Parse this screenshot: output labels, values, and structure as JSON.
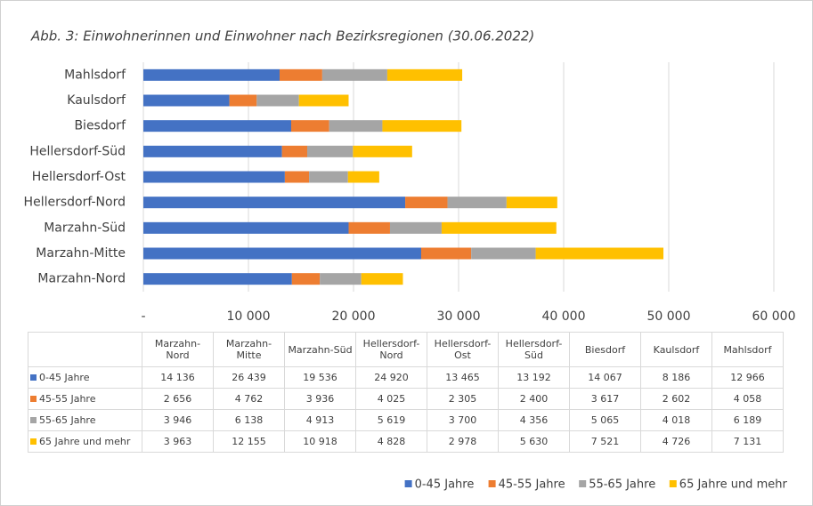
{
  "chart_data": {
    "type": "bar",
    "title": "Abb. 3: Einwohnerinnen und Einwohner nach Bezirksregionen (30.06.2022)",
    "orientation": "horizontal",
    "stacked": true,
    "categories": [
      "Marzahn-Nord",
      "Marzahn-Mitte",
      "Marzahn-Süd",
      "Hellersdorf-Nord",
      "Hellersdorf-Ost",
      "Hellersdorf-Süd",
      "Biesdorf",
      "Kaulsdorf",
      "Mahlsdorf"
    ],
    "series": [
      {
        "name": "0-45 Jahre",
        "color": "#4472c4",
        "values": [
          14136,
          26439,
          19536,
          24920,
          13465,
          13192,
          14067,
          8186,
          12966
        ],
        "value_labels": [
          "14 136",
          "26 439",
          "19 536",
          "24 920",
          "13 465",
          "13 192",
          "14 067",
          "8 186",
          "12 966"
        ]
      },
      {
        "name": "45-55 Jahre",
        "color": "#ed7d31",
        "values": [
          2656,
          4762,
          3936,
          4025,
          2305,
          2400,
          3617,
          2602,
          4058
        ],
        "value_labels": [
          "2 656",
          "4 762",
          "3 936",
          "4 025",
          "2 305",
          "2 400",
          "3 617",
          "2 602",
          "4 058"
        ]
      },
      {
        "name": "55-65 Jahre",
        "color": "#a5a5a5",
        "values": [
          3946,
          6138,
          4913,
          5619,
          3700,
          4356,
          5065,
          4018,
          6189
        ],
        "value_labels": [
          "3 946",
          "6 138",
          "4 913",
          "5 619",
          "3 700",
          "4 356",
          "5 065",
          "4 018",
          "6 189"
        ]
      },
      {
        "name": "65 Jahre und mehr",
        "color": "#ffc000",
        "values": [
          3963,
          12155,
          10918,
          4828,
          2978,
          5630,
          7521,
          4726,
          7131
        ],
        "value_labels": [
          "3 963",
          "12 155",
          "10 918",
          "4 828",
          "2 978",
          "5 630",
          "7 521",
          "4 726",
          "7 131"
        ]
      }
    ],
    "xlim": [
      0,
      60000
    ],
    "xticks": [
      {
        "value": 0,
        "label": "-"
      },
      {
        "value": 10000,
        "label": "10 000"
      },
      {
        "value": 20000,
        "label": "20 000"
      },
      {
        "value": 30000,
        "label": "30 000"
      },
      {
        "value": 40000,
        "label": "40 000"
      },
      {
        "value": 50000,
        "label": "50 000"
      },
      {
        "value": 60000,
        "label": "60 000"
      }
    ],
    "grid": true,
    "legend": "bottom-right"
  }
}
